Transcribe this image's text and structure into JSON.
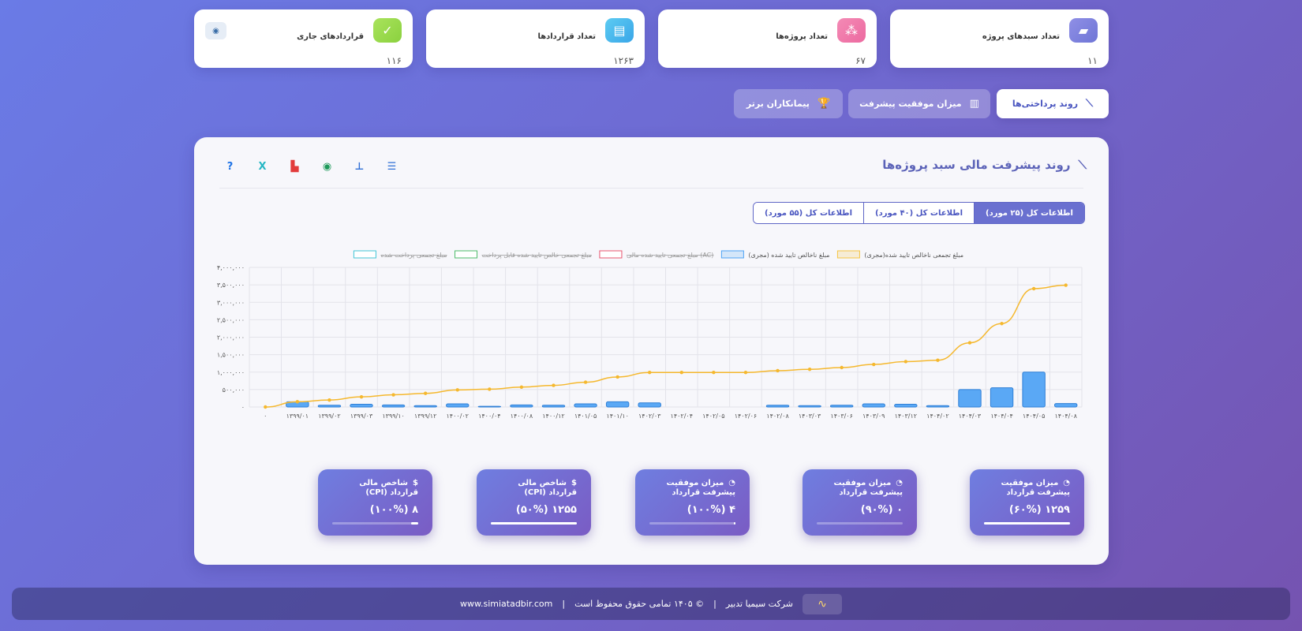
{
  "stats": [
    {
      "label": "تعداد سبدهای پروژه",
      "value": "۱۱",
      "icon": "folder-icon",
      "color": "#8f8fe6"
    },
    {
      "label": "تعداد پروژه‌ها",
      "value": "۶۷",
      "icon": "share-icon",
      "color": "#f48ab5"
    },
    {
      "label": "تعداد قراردادها",
      "value": "۱۲۶۳",
      "icon": "document-icon",
      "color": "#5ccbf2"
    },
    {
      "label": "قراردادهای جاری",
      "value": "۱۱۶",
      "icon": "check-icon",
      "color": "#a9e35c"
    }
  ],
  "tabs": [
    {
      "label": "روند پرداختی‌ها",
      "icon": "line-chart-icon",
      "active": true
    },
    {
      "label": "میزان موفقیت پیشرفت",
      "icon": "bar-chart-icon",
      "active": false
    },
    {
      "label": "پیمانکاران برتر",
      "icon": "trophy-icon",
      "active": false
    }
  ],
  "panel": {
    "title": "روند پیشرفت مالی سبد پروژه‌ها",
    "segments": [
      "اطلاعات کل (۲۵ مورد)",
      "اطلاعات کل (۴۰ مورد)",
      "اطلاعات کل (۵۵ مورد)"
    ]
  },
  "chart_data": {
    "type": "bar",
    "legend": [
      {
        "name": "مبلغ تجمعی ناخالص تایید شده(مجری)",
        "color": "#f5c542",
        "hidden": false
      },
      {
        "name": "مبلغ ناخالص تایید شده (مجری)",
        "color": "#4da3f5",
        "hidden": false
      },
      {
        "name": "مبلغ تجمعی تایید شده مالی (AC)",
        "color": "#e8546e",
        "hidden": true
      },
      {
        "name": "مبلغ تجمعی خالص تایید شده قابل پرداخت",
        "color": "#4cbb6a",
        "hidden": true
      },
      {
        "name": "مبلغ تجمعی پرداخت شده",
        "color": "#43c6d6",
        "hidden": true
      }
    ],
    "categories": [
      "۰",
      "۱۳۹۹/۰۱",
      "۱۳۹۹/۰۲",
      "۱۳۹۹/۰۳",
      "۱۳۹۹/۱۰",
      "۱۳۹۹/۱۲",
      "۱۴۰۰/۰۲",
      "۱۴۰۰/۰۴",
      "۱۴۰۰/۰۸",
      "۱۴۰۰/۱۲",
      "۱۴۰۱/۰۵",
      "۱۴۰۱/۱۰",
      "۱۴۰۲/۰۳",
      "۱۴۰۲/۰۴",
      "۱۴۰۲/۰۵",
      "۱۴۰۲/۰۶",
      "۱۴۰۲/۰۸",
      "۱۴۰۳/۰۳",
      "۱۴۰۳/۰۶",
      "۱۴۰۳/۰۹",
      "۱۴۰۳/۱۲",
      "۱۴۰۴/۰۲",
      "۱۴۰۴/۰۳",
      "۱۴۰۴/۰۴",
      "۱۴۰۴/۰۵",
      "۱۴۰۴/۰۸"
    ],
    "bars": [
      0,
      150000,
      50000,
      80000,
      60000,
      40000,
      90000,
      20000,
      60000,
      50000,
      90000,
      150000,
      120000,
      0,
      0,
      0,
      50000,
      40000,
      50000,
      90000,
      80000,
      40000,
      500000,
      550000,
      1000000,
      100000
    ],
    "line": [
      0,
      150000,
      200000,
      290000,
      350000,
      390000,
      490000,
      510000,
      570000,
      620000,
      710000,
      860000,
      990000,
      990000,
      990000,
      990000,
      1040000,
      1080000,
      1130000,
      1220000,
      1300000,
      1340000,
      1840000,
      2390000,
      3390000,
      3490000
    ],
    "yticks": [
      0,
      500000,
      1000000,
      1500000,
      2000000,
      2500000,
      3000000,
      3500000,
      4000000
    ],
    "ytick_labels": [
      "۰",
      "۵۰۰,۰۰۰",
      "۱,۰۰۰,۰۰۰",
      "۱,۵۰۰,۰۰۰",
      "۲,۰۰۰,۰۰۰",
      "۲,۵۰۰,۰۰۰",
      "۳,۰۰۰,۰۰۰",
      "۳,۵۰۰,۰۰۰",
      "۴,۰۰۰,۰۰۰"
    ],
    "ylim": [
      0,
      4000000
    ],
    "grid": true,
    "legend_position": "top"
  },
  "kpis": [
    {
      "title": "میزان موفقیت پیشرفت قرارداد",
      "value": "۱۲۵۹ (۶۰%)",
      "icon": "pie-chart-icon",
      "progress": 100
    },
    {
      "title": "میزان موفقیت پیشرفت قرارداد",
      "value": "۰ (۹۰%)",
      "icon": "pie-chart-icon",
      "progress": 0
    },
    {
      "title": "میزان موفقیت پیشرفت قرارداد",
      "value": "۴ (۱۰۰%)",
      "icon": "pie-chart-icon",
      "progress": 2
    },
    {
      "title": "شاخص مالی قرارداد (CPI)",
      "value": "۱۲۵۵ (۵۰%)",
      "icon": "dollar-icon",
      "progress": 100
    },
    {
      "title": "شاخص مالی قرارداد (CPI)",
      "value": "۸ (۱۰۰%)",
      "icon": "dollar-icon",
      "progress": 8
    }
  ],
  "footer": {
    "company": "شرکت سیمیا تدبیر",
    "copyright": "© ۱۴۰۵ تمامی حقوق محفوظ است",
    "website": "www.simiatadbir.com",
    "separator": "|"
  }
}
